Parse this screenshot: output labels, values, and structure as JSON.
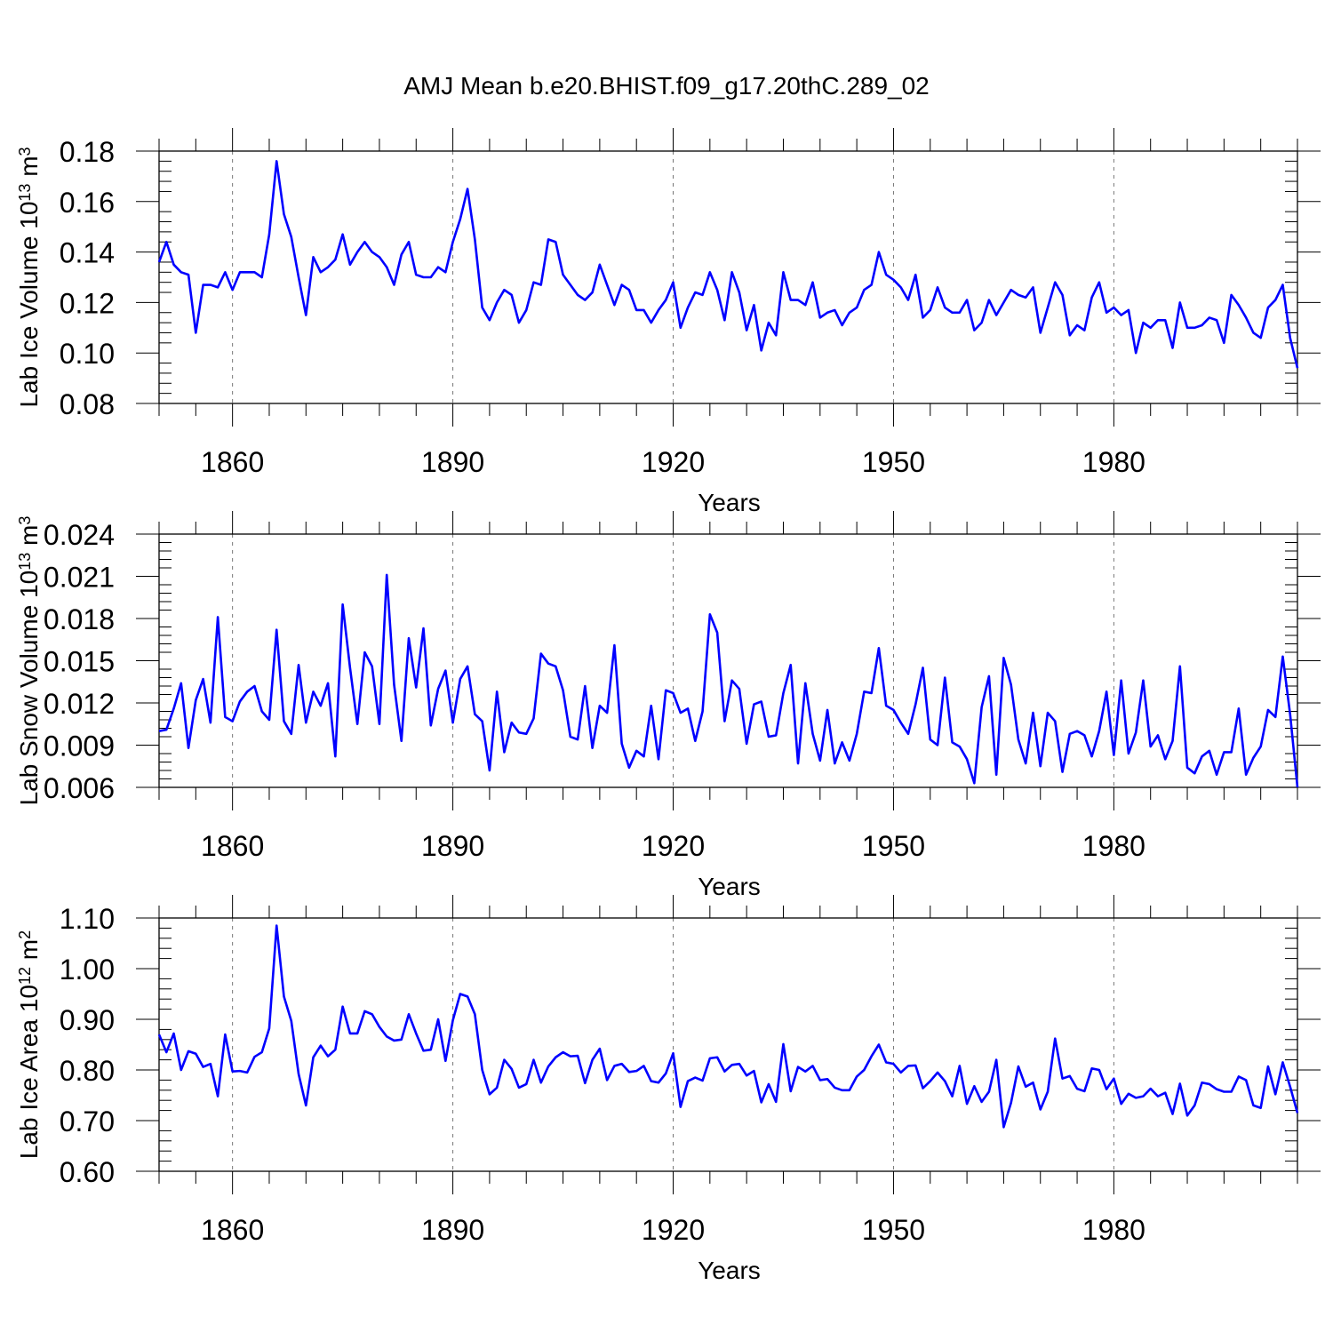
{
  "title": "AMJ Mean b.e20.BHIST.f09_g17.20thC.289_02",
  "chart_data": [
    {
      "type": "line",
      "ylabel": "Lab Ice Volume 10",
      "ylabel_exp": "13",
      "ylabel_unit": " m",
      "ylabel_unit_exp": "3",
      "xlabel": "Years",
      "xlim": [
        1850,
        2005
      ],
      "ylim": [
        0.08,
        0.18
      ],
      "xticks": [
        1860,
        1890,
        1920,
        1950,
        1980
      ],
      "xtick_labels": [
        "1860",
        "1890",
        "1920",
        "1950",
        "1980"
      ],
      "yticks": [
        0.08,
        0.1,
        0.12,
        0.14,
        0.16,
        0.18
      ],
      "ytick_labels": [
        "0.08",
        "0.10",
        "0.12",
        "0.14",
        "0.16",
        "0.18"
      ],
      "color": "#0000ff",
      "start_year": 1850,
      "values": [
        0.136,
        0.144,
        0.135,
        0.132,
        0.131,
        0.108,
        0.127,
        0.127,
        0.126,
        0.132,
        0.125,
        0.132,
        0.132,
        0.132,
        0.13,
        0.147,
        0.176,
        0.155,
        0.146,
        0.13,
        0.115,
        0.138,
        0.132,
        0.134,
        0.137,
        0.147,
        0.135,
        0.14,
        0.144,
        0.14,
        0.138,
        0.134,
        0.127,
        0.139,
        0.144,
        0.131,
        0.13,
        0.13,
        0.134,
        0.132,
        0.144,
        0.153,
        0.165,
        0.145,
        0.118,
        0.113,
        0.12,
        0.125,
        0.123,
        0.112,
        0.117,
        0.128,
        0.127,
        0.145,
        0.144,
        0.131,
        0.127,
        0.123,
        0.121,
        0.124,
        0.135,
        0.127,
        0.119,
        0.127,
        0.125,
        0.117,
        0.117,
        0.112,
        0.117,
        0.121,
        0.128,
        0.11,
        0.118,
        0.124,
        0.123,
        0.132,
        0.125,
        0.113,
        0.132,
        0.124,
        0.109,
        0.119,
        0.101,
        0.112,
        0.107,
        0.132,
        0.121,
        0.121,
        0.119,
        0.128,
        0.114,
        0.116,
        0.117,
        0.111,
        0.116,
        0.118,
        0.125,
        0.127,
        0.14,
        0.131,
        0.129,
        0.126,
        0.121,
        0.131,
        0.114,
        0.117,
        0.126,
        0.118,
        0.116,
        0.116,
        0.121,
        0.109,
        0.112,
        0.121,
        0.115,
        0.12,
        0.125,
        0.123,
        0.122,
        0.126,
        0.108,
        0.118,
        0.128,
        0.123,
        0.107,
        0.111,
        0.109,
        0.122,
        0.128,
        0.116,
        0.118,
        0.115,
        0.117,
        0.1,
        0.112,
        0.11,
        0.113,
        0.113,
        0.102,
        0.12,
        0.11,
        0.11,
        0.111,
        0.114,
        0.113,
        0.104,
        0.123,
        0.119,
        0.114,
        0.108,
        0.106,
        0.118,
        0.121,
        0.127,
        0.106,
        0.094
      ]
    },
    {
      "type": "line",
      "ylabel": "Lab Snow Volume 10",
      "ylabel_exp": "13",
      "ylabel_unit": " m",
      "ylabel_unit_exp": "3",
      "xlabel": "Years",
      "xlim": [
        1850,
        2005
      ],
      "ylim": [
        0.006,
        0.024
      ],
      "xticks": [
        1860,
        1890,
        1920,
        1950,
        1980
      ],
      "xtick_labels": [
        "1860",
        "1890",
        "1920",
        "1950",
        "1980"
      ],
      "yticks": [
        0.006,
        0.009,
        0.012,
        0.015,
        0.018,
        0.021,
        0.024
      ],
      "ytick_labels": [
        "0.006",
        "0.009",
        "0.012",
        "0.015",
        "0.018",
        "0.021",
        "0.024"
      ],
      "color": "#0000ff",
      "start_year": 1850,
      "values": [
        0.01,
        0.0101,
        0.0116,
        0.0134,
        0.0088,
        0.0122,
        0.0137,
        0.0106,
        0.0181,
        0.011,
        0.0107,
        0.0121,
        0.0128,
        0.0132,
        0.0114,
        0.0108,
        0.0172,
        0.0107,
        0.0098,
        0.0147,
        0.0106,
        0.0128,
        0.0118,
        0.0134,
        0.0082,
        0.019,
        0.0145,
        0.0105,
        0.0156,
        0.0146,
        0.0105,
        0.0211,
        0.0133,
        0.0093,
        0.0166,
        0.0131,
        0.0173,
        0.0104,
        0.013,
        0.0143,
        0.0106,
        0.0137,
        0.0146,
        0.0112,
        0.0107,
        0.0072,
        0.0128,
        0.0085,
        0.0106,
        0.0099,
        0.0098,
        0.0109,
        0.0155,
        0.0148,
        0.0146,
        0.0129,
        0.0096,
        0.0094,
        0.0132,
        0.0088,
        0.0118,
        0.0113,
        0.0161,
        0.0091,
        0.0074,
        0.0086,
        0.0082,
        0.0118,
        0.008,
        0.0129,
        0.0127,
        0.0113,
        0.0116,
        0.0093,
        0.0114,
        0.0183,
        0.017,
        0.0107,
        0.0136,
        0.013,
        0.0091,
        0.0119,
        0.0121,
        0.0096,
        0.0097,
        0.0127,
        0.0147,
        0.0077,
        0.0134,
        0.0098,
        0.0079,
        0.0115,
        0.0077,
        0.0092,
        0.0079,
        0.0098,
        0.0128,
        0.0127,
        0.0159,
        0.0118,
        0.0115,
        0.0106,
        0.0098,
        0.0119,
        0.0145,
        0.0094,
        0.009,
        0.0138,
        0.0092,
        0.0089,
        0.008,
        0.0063,
        0.0117,
        0.0139,
        0.0069,
        0.0152,
        0.0133,
        0.0094,
        0.0077,
        0.0113,
        0.0075,
        0.0113,
        0.0107,
        0.0071,
        0.0098,
        0.01,
        0.0097,
        0.0082,
        0.01,
        0.0128,
        0.0083,
        0.0136,
        0.0084,
        0.0099,
        0.0136,
        0.0089,
        0.0097,
        0.008,
        0.0093,
        0.0146,
        0.0074,
        0.007,
        0.0082,
        0.0086,
        0.0069,
        0.0085,
        0.0085,
        0.0116,
        0.0069,
        0.0081,
        0.0089,
        0.0115,
        0.011,
        0.0153,
        0.0112,
        0.006
      ]
    },
    {
      "type": "line",
      "ylabel": "Lab Ice Area 10",
      "ylabel_exp": "12",
      "ylabel_unit": " m",
      "ylabel_unit_exp": "2",
      "xlabel": "Years",
      "xlim": [
        1850,
        2005
      ],
      "ylim": [
        0.6,
        1.1
      ],
      "xticks": [
        1860,
        1890,
        1920,
        1950,
        1980
      ],
      "xtick_labels": [
        "1860",
        "1890",
        "1920",
        "1950",
        "1980"
      ],
      "yticks": [
        0.6,
        0.7,
        0.8,
        0.9,
        1.0,
        1.1
      ],
      "ytick_labels": [
        "0.60",
        "0.70",
        "0.80",
        "0.90",
        "1.00",
        "1.10"
      ],
      "color": "#0000ff",
      "start_year": 1850,
      "values": [
        0.87,
        0.835,
        0.872,
        0.8,
        0.837,
        0.832,
        0.806,
        0.812,
        0.748,
        0.87,
        0.797,
        0.798,
        0.795,
        0.826,
        0.835,
        0.882,
        1.085,
        0.945,
        0.897,
        0.792,
        0.73,
        0.825,
        0.848,
        0.827,
        0.84,
        0.925,
        0.872,
        0.872,
        0.916,
        0.91,
        0.885,
        0.866,
        0.858,
        0.86,
        0.91,
        0.872,
        0.838,
        0.84,
        0.9,
        0.818,
        0.898,
        0.95,
        0.945,
        0.91,
        0.8,
        0.752,
        0.765,
        0.82,
        0.802,
        0.765,
        0.772,
        0.82,
        0.775,
        0.807,
        0.825,
        0.835,
        0.827,
        0.828,
        0.774,
        0.82,
        0.842,
        0.78,
        0.808,
        0.812,
        0.796,
        0.798,
        0.808,
        0.778,
        0.775,
        0.793,
        0.833,
        0.727,
        0.778,
        0.785,
        0.779,
        0.823,
        0.825,
        0.797,
        0.81,
        0.812,
        0.789,
        0.798,
        0.736,
        0.772,
        0.737,
        0.851,
        0.758,
        0.806,
        0.797,
        0.808,
        0.78,
        0.782,
        0.765,
        0.76,
        0.76,
        0.787,
        0.8,
        0.827,
        0.85,
        0.815,
        0.812,
        0.795,
        0.808,
        0.809,
        0.764,
        0.778,
        0.795,
        0.778,
        0.748,
        0.808,
        0.733,
        0.768,
        0.737,
        0.757,
        0.82,
        0.687,
        0.735,
        0.807,
        0.767,
        0.775,
        0.722,
        0.757,
        0.862,
        0.783,
        0.788,
        0.763,
        0.758,
        0.803,
        0.8,
        0.762,
        0.783,
        0.733,
        0.753,
        0.745,
        0.748,
        0.763,
        0.748,
        0.755,
        0.713,
        0.773,
        0.71,
        0.73,
        0.775,
        0.772,
        0.762,
        0.757,
        0.757,
        0.787,
        0.78,
        0.73,
        0.725,
        0.807,
        0.752,
        0.815,
        0.767,
        0.715
      ]
    }
  ]
}
